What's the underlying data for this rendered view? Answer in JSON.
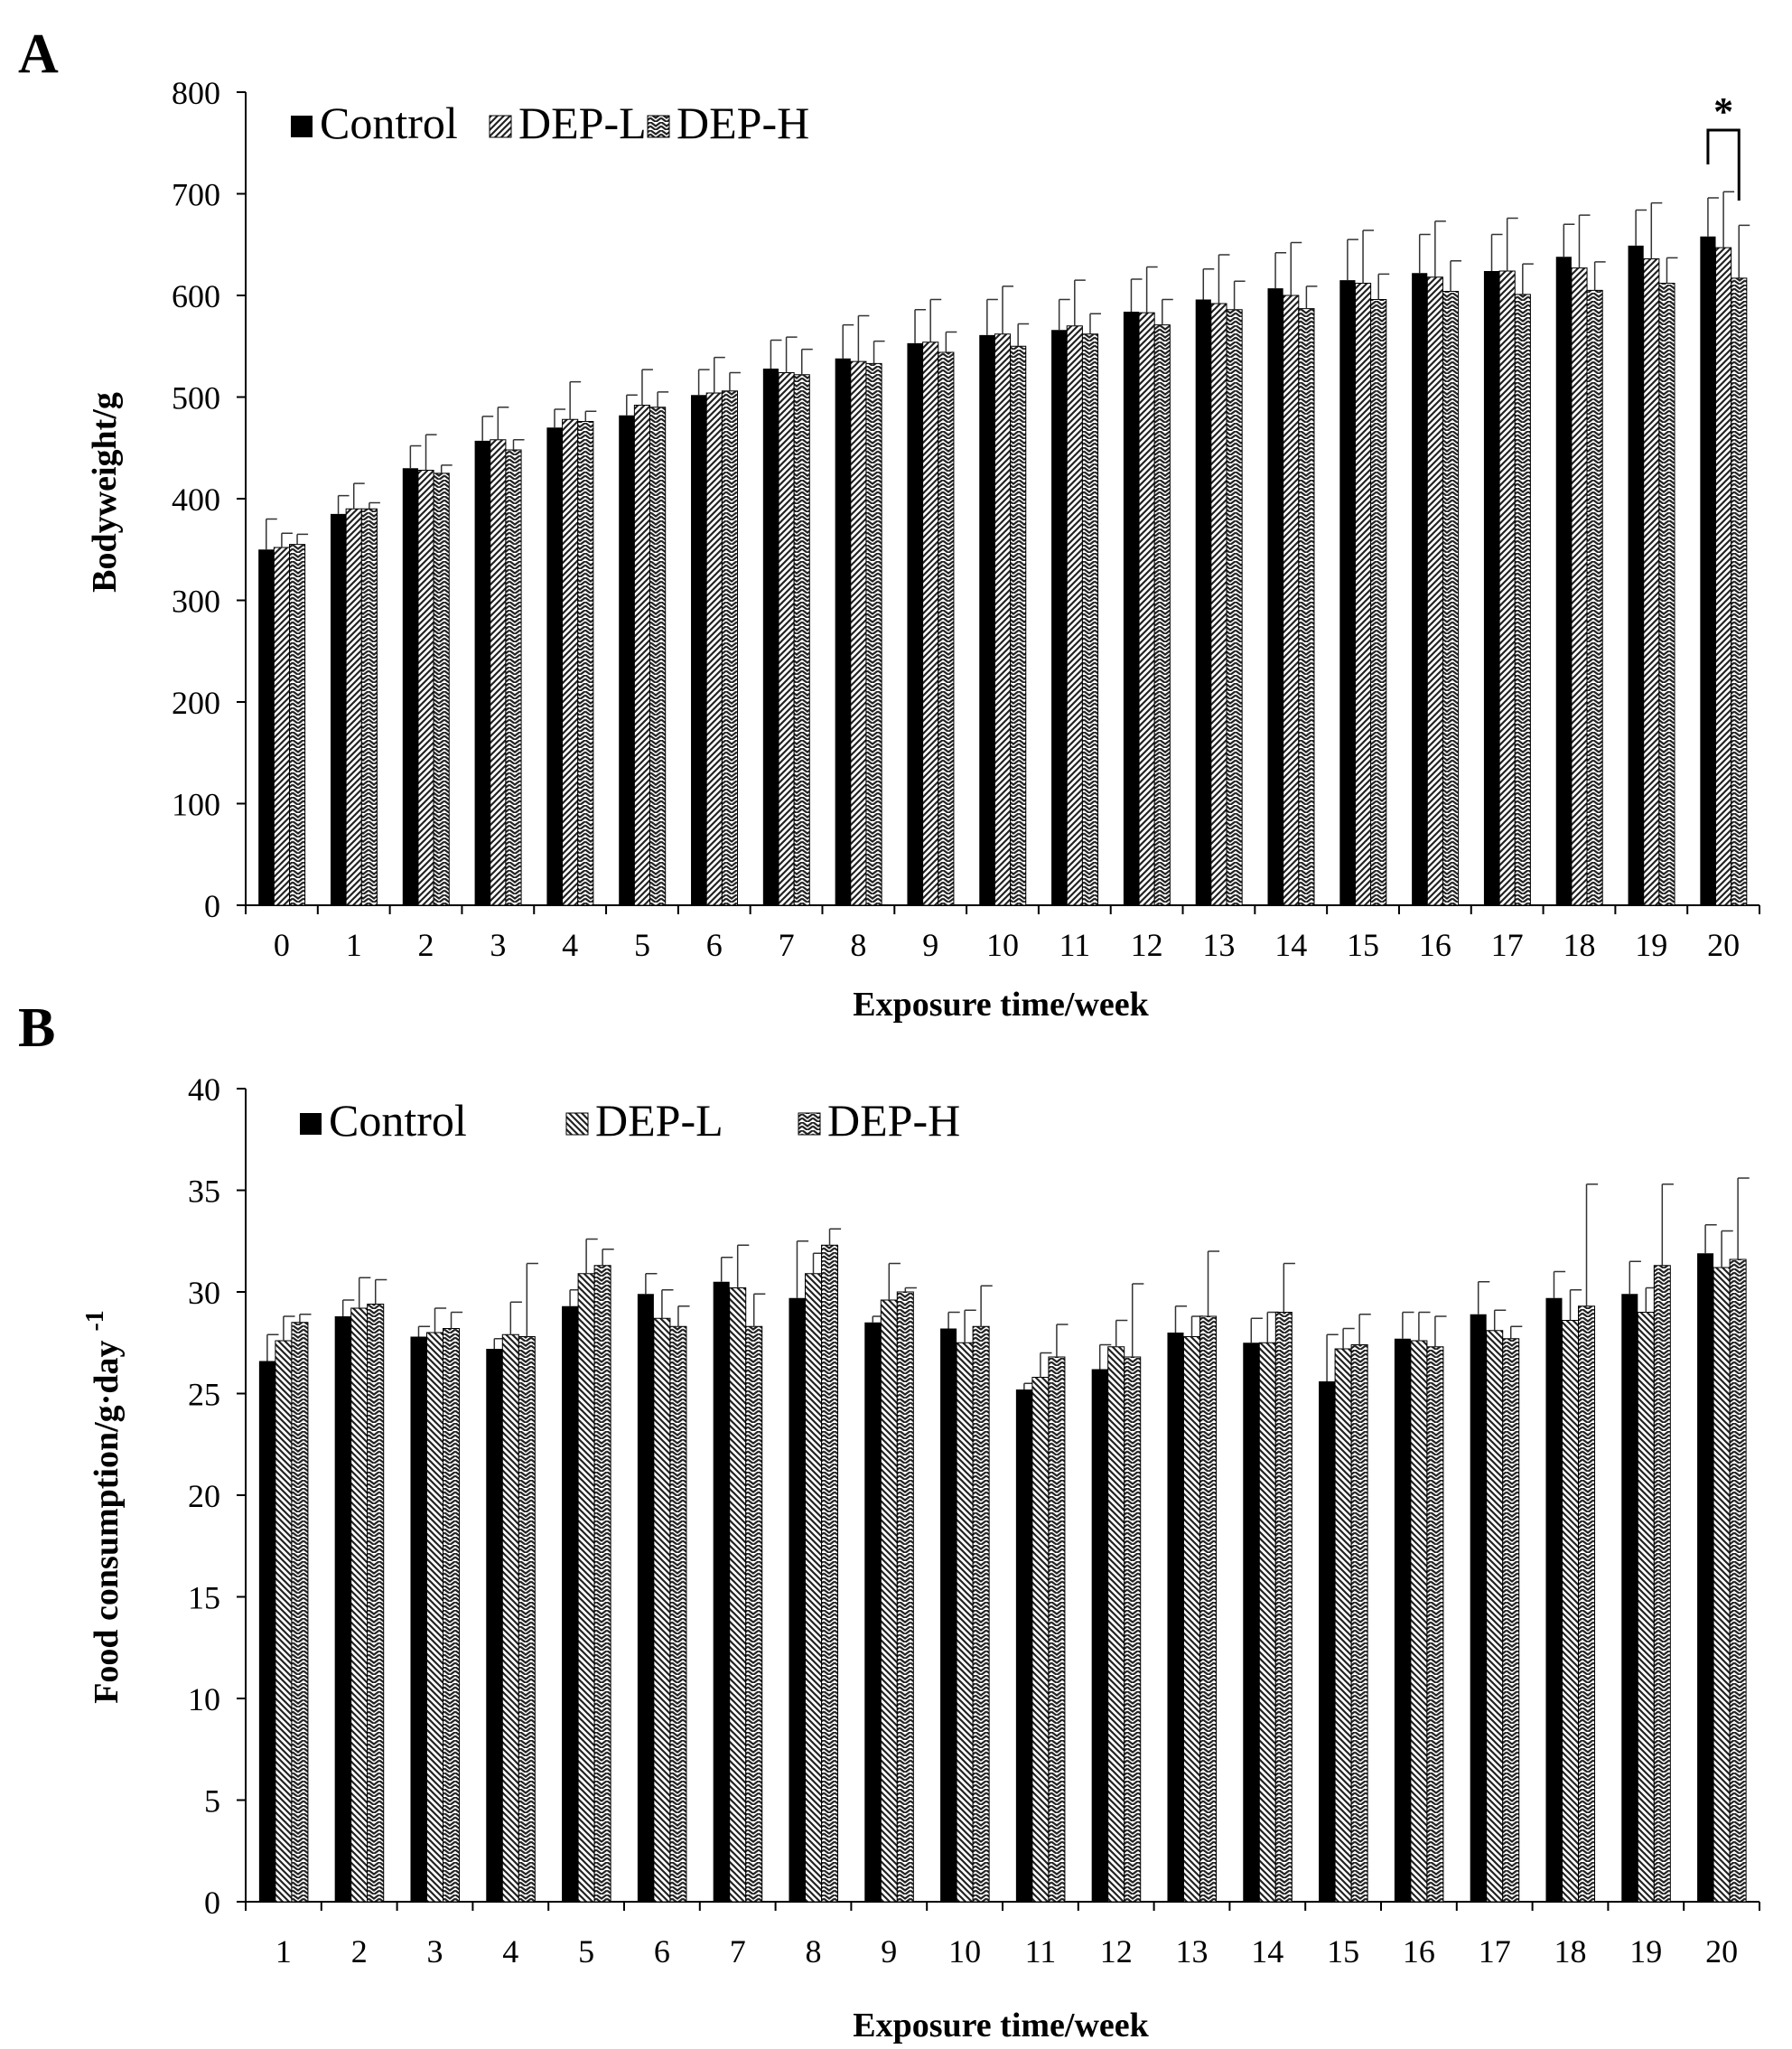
{
  "chart_data": [
    {
      "panel_label": "A",
      "type": "bar",
      "title": "",
      "xlabel": "Exposure time/week",
      "ylabel": "Bodyweight/g",
      "ylim": [
        0,
        800
      ],
      "yticks": [
        0,
        100,
        200,
        300,
        400,
        500,
        600,
        700,
        800
      ],
      "categories": [
        "0",
        "1",
        "2",
        "3",
        "4",
        "5",
        "6",
        "7",
        "8",
        "9",
        "10",
        "11",
        "12",
        "13",
        "14",
        "15",
        "16",
        "17",
        "18",
        "19",
        "20"
      ],
      "legend": {
        "position": "top-left"
      },
      "series": [
        {
          "name": "Control",
          "fill": "#000000",
          "pattern": "solid",
          "values": [
            350,
            385,
            430,
            457,
            470,
            482,
            502,
            528,
            538,
            553,
            561,
            566,
            584,
            596,
            607,
            615,
            622,
            624,
            638,
            649,
            658
          ],
          "errors": [
            30,
            18,
            22,
            24,
            18,
            20,
            25,
            28,
            33,
            33,
            35,
            30,
            32,
            30,
            35,
            40,
            38,
            36,
            32,
            35,
            38
          ]
        },
        {
          "name": "DEP-L",
          "fill": "#ffffff",
          "pattern": "diagonal",
          "values": [
            352,
            390,
            428,
            458,
            478,
            492,
            504,
            524,
            535,
            554,
            562,
            570,
            583,
            592,
            600,
            612,
            618,
            624,
            627,
            636,
            647
          ],
          "errors": [
            14,
            25,
            35,
            32,
            37,
            35,
            35,
            35,
            45,
            42,
            47,
            45,
            45,
            48,
            52,
            52,
            55,
            52,
            52,
            55,
            55
          ]
        },
        {
          "name": "DEP-H",
          "fill": "#ffffff",
          "pattern": "zigzag",
          "values": [
            355,
            390,
            425,
            448,
            476,
            490,
            506,
            522,
            533,
            544,
            550,
            562,
            571,
            586,
            587,
            596,
            604,
            601,
            605,
            612,
            617
          ],
          "errors": [
            10,
            6,
            8,
            10,
            10,
            15,
            18,
            25,
            22,
            20,
            22,
            20,
            25,
            28,
            22,
            25,
            30,
            30,
            28,
            25,
            52
          ]
        }
      ],
      "annotations": [
        {
          "text": "*",
          "between": [
            "Control",
            "DEP-H"
          ],
          "category": "20"
        }
      ]
    },
    {
      "panel_label": "B",
      "type": "bar",
      "title": "",
      "xlabel": "Exposure time/week",
      "ylabel": "Food consumption/g·day",
      "ylabel_superscript": "-1",
      "ylim": [
        0,
        40
      ],
      "yticks": [
        0,
        5,
        10,
        15,
        20,
        25,
        30,
        35,
        40
      ],
      "categories": [
        "1",
        "2",
        "3",
        "4",
        "5",
        "6",
        "7",
        "8",
        "9",
        "10",
        "11",
        "12",
        "13",
        "14",
        "15",
        "16",
        "17",
        "18",
        "19",
        "20"
      ],
      "legend": {
        "position": "top-left"
      },
      "series": [
        {
          "name": "Control",
          "fill": "#000000",
          "pattern": "solid",
          "values": [
            26.6,
            28.8,
            27.8,
            27.2,
            29.3,
            29.9,
            30.5,
            29.7,
            28.5,
            28.2,
            25.2,
            26.2,
            28.0,
            27.5,
            25.6,
            27.7,
            28.9,
            29.7,
            29.9,
            31.9
          ],
          "errors": [
            1.3,
            0.8,
            0.5,
            0.5,
            0.8,
            1.0,
            1.2,
            2.8,
            0.3,
            0.8,
            0.3,
            1.2,
            1.3,
            1.2,
            2.3,
            1.3,
            1.6,
            1.3,
            1.6,
            1.4
          ]
        },
        {
          "name": "DEP-L",
          "fill": "#ffffff",
          "pattern": "diagonal-back",
          "values": [
            27.6,
            29.2,
            28.0,
            27.9,
            30.9,
            28.7,
            30.2,
            30.9,
            29.6,
            27.5,
            25.8,
            27.3,
            27.8,
            27.5,
            27.2,
            27.6,
            28.1,
            28.6,
            29.0,
            31.2
          ],
          "errors": [
            1.2,
            1.5,
            1.2,
            1.6,
            1.7,
            1.4,
            2.1,
            1.0,
            1.8,
            1.6,
            1.2,
            1.3,
            1.0,
            1.5,
            1.0,
            1.4,
            1.0,
            1.5,
            1.2,
            1.8
          ]
        },
        {
          "name": "DEP-H",
          "fill": "#ffffff",
          "pattern": "zigzag",
          "values": [
            28.5,
            29.4,
            28.2,
            27.8,
            31.3,
            28.3,
            28.3,
            32.3,
            30.0,
            28.3,
            26.8,
            26.8,
            28.8,
            29.0,
            27.4,
            27.3,
            27.7,
            29.3,
            31.3,
            31.6
          ],
          "errors": [
            0.4,
            1.2,
            0.8,
            3.6,
            0.8,
            1.0,
            1.6,
            0.8,
            0.2,
            2.0,
            1.6,
            3.6,
            3.2,
            2.4,
            1.5,
            1.5,
            0.6,
            6.0,
            4.0,
            4.0
          ]
        }
      ]
    }
  ]
}
